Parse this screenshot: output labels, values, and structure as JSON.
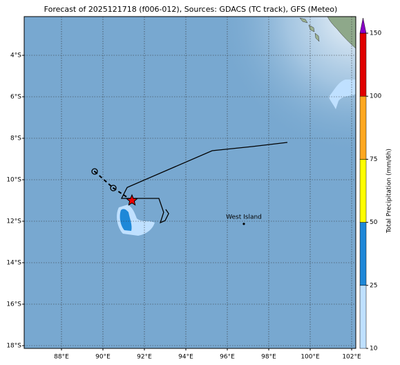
{
  "map": {
    "title": "Forecast of 2025121718 (f006-012), Sources: GDACS (TC track), GFS (Meteo)",
    "xlim": [
      86.2,
      102.2
    ],
    "ylim": [
      -18.133,
      -2.133
    ],
    "xticks": [
      {
        "value": 88,
        "label": "88°E"
      },
      {
        "value": 90,
        "label": "90°E"
      },
      {
        "value": 92,
        "label": "92°E"
      },
      {
        "value": 94,
        "label": "94°E"
      },
      {
        "value": 96,
        "label": "96°E"
      },
      {
        "value": 98,
        "label": "98°E"
      },
      {
        "value": 100,
        "label": "100°E"
      },
      {
        "value": 102,
        "label": "102°E"
      }
    ],
    "yticks": [
      {
        "value": -4,
        "label": "4°S"
      },
      {
        "value": -6,
        "label": "6°S"
      },
      {
        "value": -8,
        "label": "8°S"
      },
      {
        "value": -10,
        "label": "10°S"
      },
      {
        "value": -12,
        "label": "12°S"
      },
      {
        "value": -14,
        "label": "14°S"
      },
      {
        "value": -16,
        "label": "16°S"
      },
      {
        "value": -18,
        "label": "18°S"
      }
    ],
    "grid": true,
    "track": {
      "past": [
        {
          "lon": 89.6,
          "lat": -9.6
        },
        {
          "lon": 90.5,
          "lat": -10.4
        }
      ],
      "current": {
        "lon": 91.4,
        "lat": -11.0
      },
      "cone": [
        {
          "lon": 98.9,
          "lat": -8.2
        },
        {
          "lon": 97.2,
          "lat": -8.4
        },
        {
          "lon": 95.27,
          "lat": -8.6
        },
        {
          "lon": 91.17,
          "lat": -10.37
        },
        {
          "lon": 90.9,
          "lat": -10.9
        },
        {
          "lon": 92.7,
          "lat": -10.9
        },
        {
          "lon": 92.93,
          "lat": -11.57
        },
        {
          "lon": 92.77,
          "lat": -12.07
        },
        {
          "lon": 93.0,
          "lat": -11.97
        },
        {
          "lon": 93.17,
          "lat": -11.63
        },
        {
          "lon": 93.03,
          "lat": -11.43
        }
      ]
    },
    "places": [
      {
        "name": "West Island",
        "lon": 96.8,
        "lat": -12.13
      }
    ],
    "colorbar": {
      "label": "Total Precipitation (mm/6h)",
      "levels": [
        10,
        25,
        50,
        75,
        100,
        150
      ],
      "colors": [
        "#bfe0ff",
        "#1e88d8",
        "#ffff00",
        "#ffa820",
        "#e00000"
      ],
      "extend_color": "#8a00c8"
    }
  }
}
